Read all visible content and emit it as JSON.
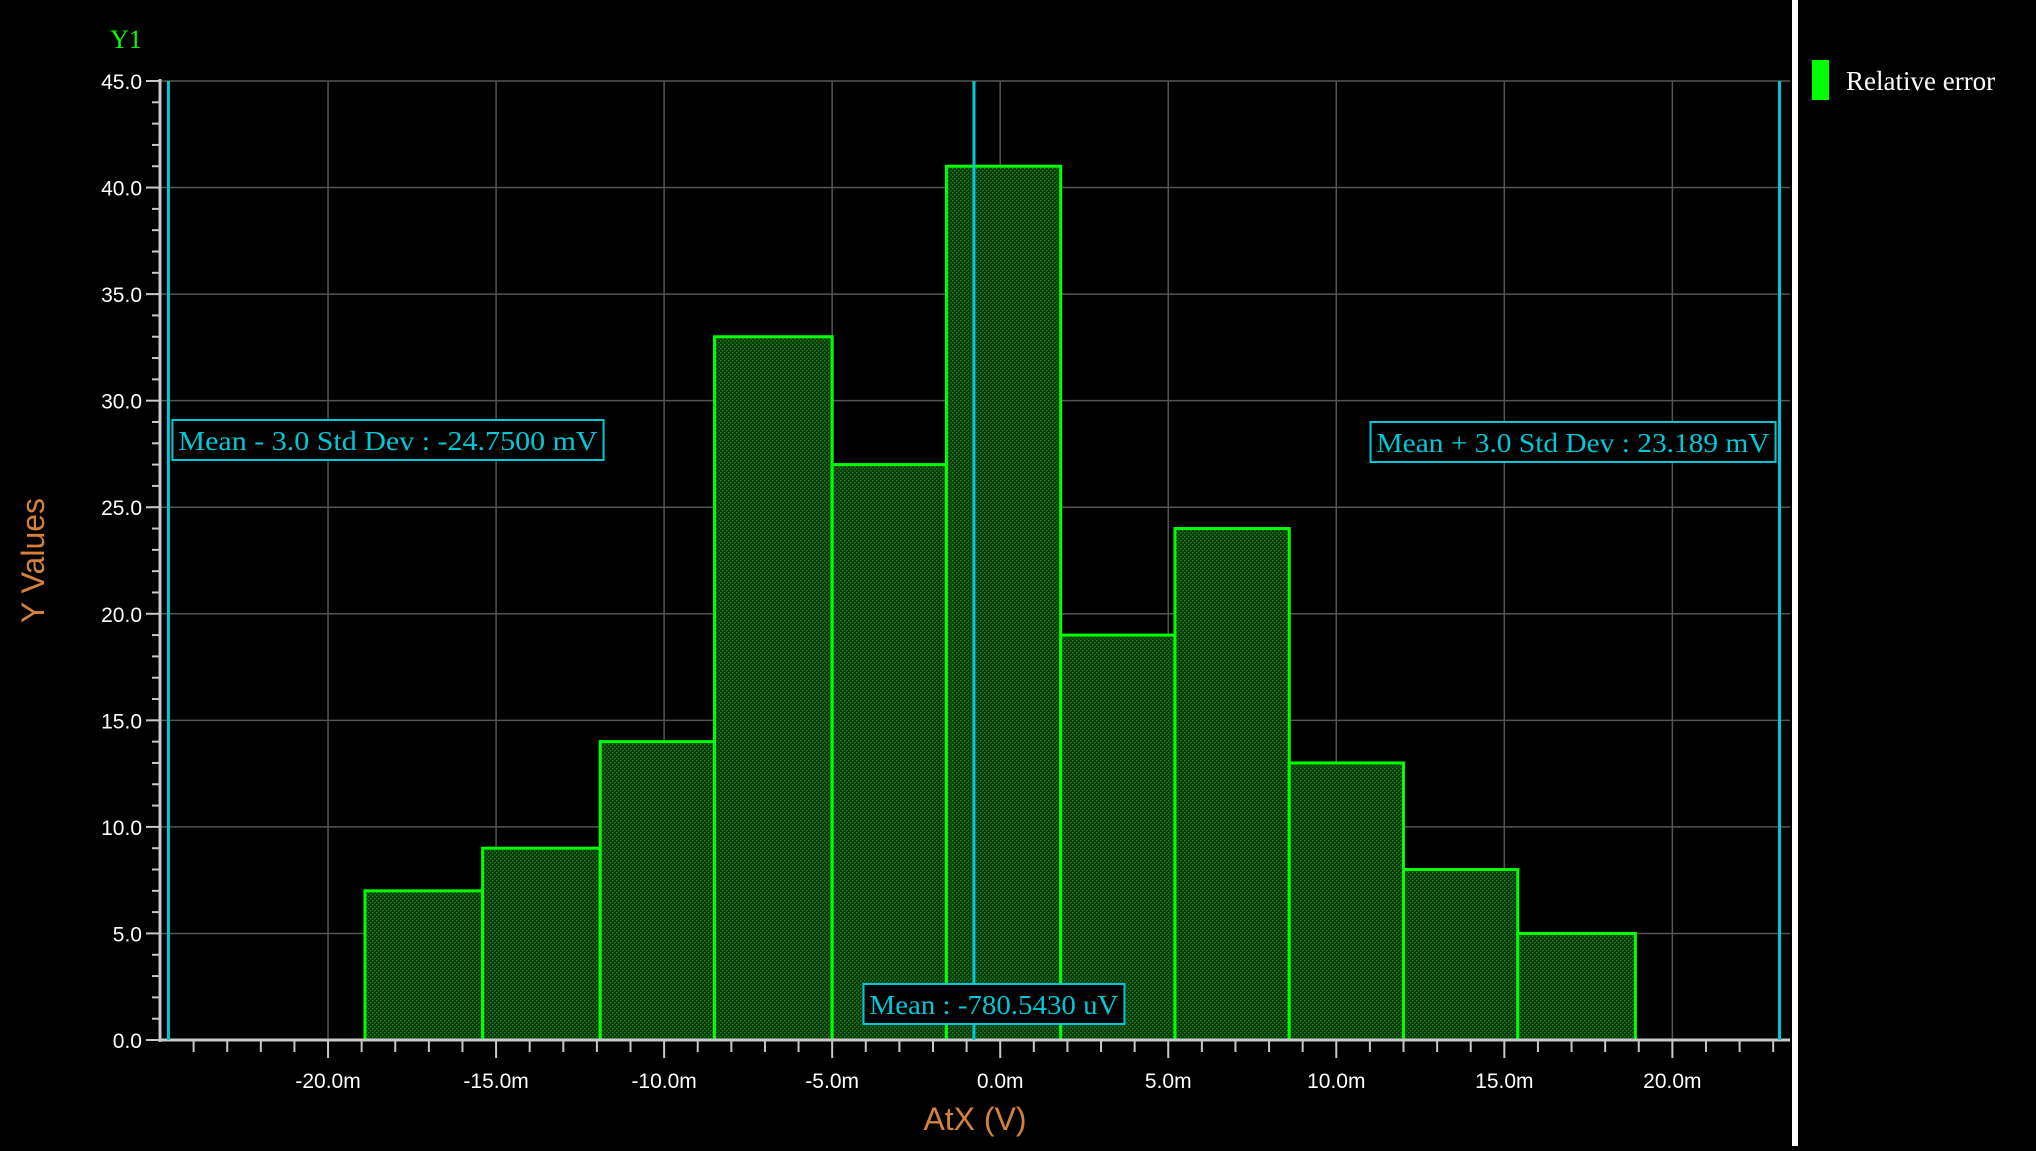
{
  "colors": {
    "background": "#000000",
    "grid": "#555555",
    "axis": "#c8c8c8",
    "bar_fill": "#0a3a0a",
    "bar_edge": "#00ff00",
    "marker": "#00c8d8",
    "axis_title": "#d4823a",
    "y1_label": "#00ff00",
    "legend_text": "#ffffff"
  },
  "chart_data": {
    "type": "bar",
    "title": "",
    "y_axis_name": "Y1",
    "xlabel": "AtX (V)",
    "ylabel": "Y Values",
    "xlim": [
      -25.0,
      23.5
    ],
    "ylim": [
      0,
      45
    ],
    "grid": true,
    "legend": {
      "position": "right",
      "entries": [
        "Relative error"
      ]
    },
    "x_ticks": [
      {
        "value": -20,
        "label": "-20.0m"
      },
      {
        "value": -15,
        "label": "-15.0m"
      },
      {
        "value": -10,
        "label": "-10.0m"
      },
      {
        "value": -5,
        "label": "-5.0m"
      },
      {
        "value": 0,
        "label": "0.0m"
      },
      {
        "value": 5,
        "label": "5.0m"
      },
      {
        "value": 10,
        "label": "10.0m"
      },
      {
        "value": 15,
        "label": "15.0m"
      },
      {
        "value": 20,
        "label": "20.0m"
      }
    ],
    "y_ticks": [
      {
        "value": 0,
        "label": "0.0"
      },
      {
        "value": 5,
        "label": "5.0"
      },
      {
        "value": 10,
        "label": "10.0"
      },
      {
        "value": 15,
        "label": "15.0"
      },
      {
        "value": 20,
        "label": "20.0"
      },
      {
        "value": 25,
        "label": "25.0"
      },
      {
        "value": 30,
        "label": "30.0"
      },
      {
        "value": 35,
        "label": "35.0"
      },
      {
        "value": 40,
        "label": "40.0"
      },
      {
        "value": 45,
        "label": "45.0"
      }
    ],
    "bin_edges": [
      -18.9,
      -15.4,
      -11.9,
      -8.5,
      -5.0,
      -1.6,
      1.8,
      5.2,
      8.6,
      12.0,
      15.4,
      18.9
    ],
    "series": [
      {
        "name": "Relative error",
        "values": [
          7,
          9,
          14,
          33,
          27,
          41,
          19,
          24,
          13,
          8,
          5
        ]
      }
    ],
    "markers": [
      {
        "x": -24.75,
        "label": "Mean - 3.0 Std Dev : -24.7500 mV"
      },
      {
        "x": -0.7805,
        "label": "Mean : -780.5430 uV"
      },
      {
        "x": 23.189,
        "label": "Mean + 3.0 Std Dev : 23.189 mV"
      }
    ]
  }
}
